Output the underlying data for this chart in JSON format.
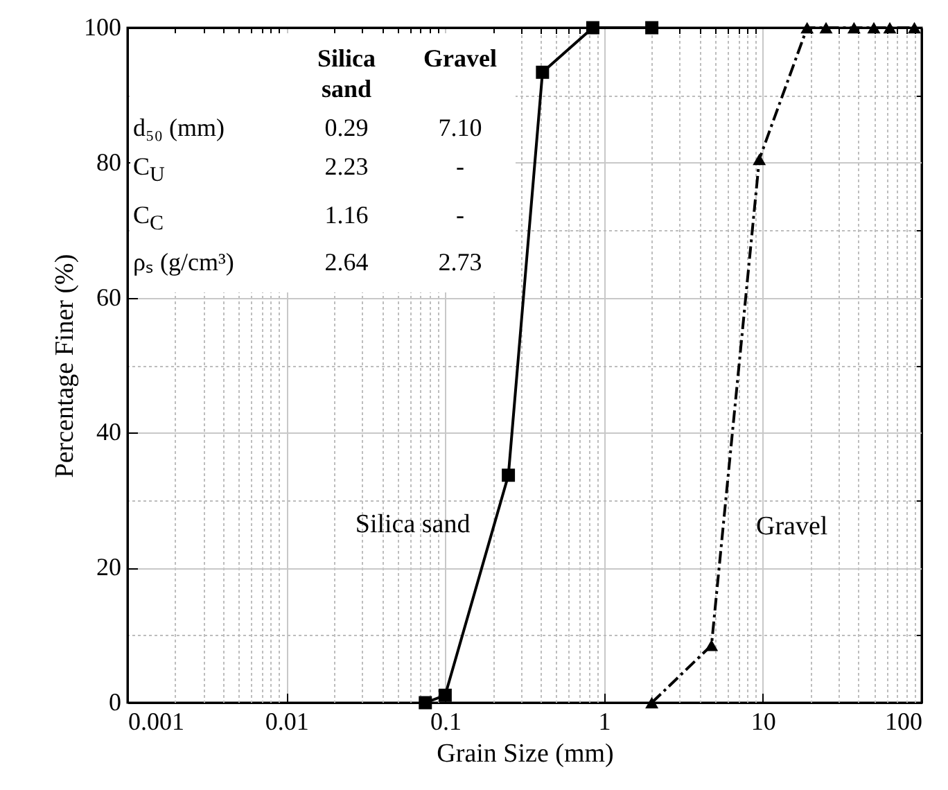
{
  "chart_data": {
    "type": "line",
    "xlabel": "Grain Size (mm)",
    "ylabel": "Percentage Finer (%)",
    "log": "x",
    "xlim": [
      0.001,
      100
    ],
    "xticks": [
      0.001,
      0.01,
      0.1,
      1,
      10,
      100
    ],
    "ylim": [
      0,
      100
    ],
    "yticks": [
      0,
      20,
      40,
      60,
      80,
      100
    ],
    "grid": true,
    "series": [
      {
        "name": "Silica sand",
        "color": "#000000",
        "marker": "square",
        "line_style": "solid",
        "x": [
          0.075,
          0.1,
          0.25,
          0.41,
          0.85,
          2
        ],
        "values": [
          0,
          1.1,
          33.7,
          93.4,
          100,
          100
        ]
      },
      {
        "name": "Gravel",
        "color": "#000000",
        "marker": "triangle",
        "line_style": "dashdot",
        "x": [
          2,
          4.75,
          9.5,
          19,
          25,
          37.5,
          50,
          63,
          90
        ],
        "values": [
          0,
          8.5,
          80.5,
          100,
          100,
          100,
          100,
          100,
          100
        ]
      }
    ],
    "annotations": [
      "Silica sand",
      "Gravel",
      "d₅₀ (mm)",
      "0.29",
      "7.10",
      "C$_{U}$",
      "2.23",
      "-",
      "C$_{C}$",
      "1.16",
      "-",
      "ρₛ (g/cm³)",
      "2.64",
      "2.73"
    ]
  }
}
